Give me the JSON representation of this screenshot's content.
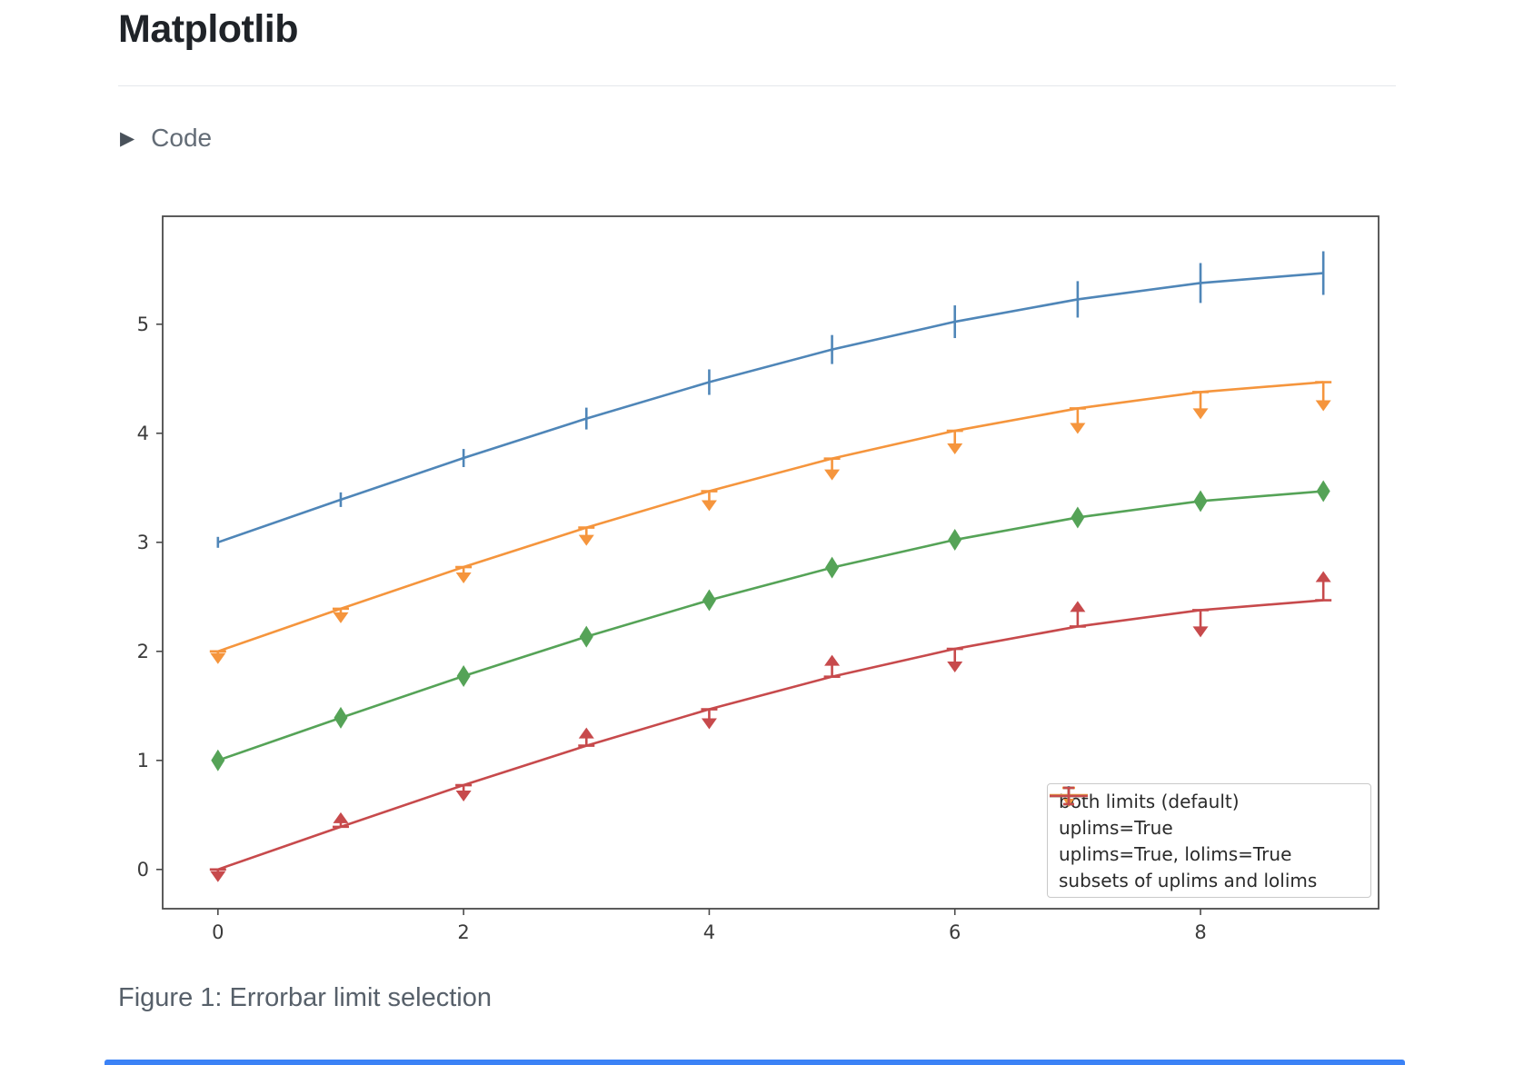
{
  "page": {
    "title": "Matplotlib",
    "code_toggle": {
      "label": "Code",
      "icon": "play-triangle"
    },
    "caption": "Figure 1: Errorbar limit selection"
  },
  "colors": {
    "title_text": "#1f2328",
    "muted_text": "#636c76",
    "caption_text": "#57606a",
    "divider": "#e4e7eb",
    "accent_bar": "#3b82f6",
    "axis": "#4a4a4a",
    "tick_label": "#3b3b3b",
    "legend_border": "#c9c9c9"
  },
  "chart_data": {
    "type": "line",
    "title": "",
    "xlabel": "",
    "ylabel": "",
    "grid": false,
    "legend_position": "lower right",
    "x": [
      0,
      1,
      2,
      3,
      4,
      5,
      6,
      7,
      8,
      9
    ],
    "xticks": [
      0,
      2,
      4,
      6,
      8
    ],
    "yticks": [
      0,
      1,
      2,
      3,
      4,
      5
    ],
    "xlim": [
      -0.45,
      9.45
    ],
    "ylim": [
      -0.36,
      5.99
    ],
    "yerr": [
      0.05,
      0.067,
      0.083,
      0.1,
      0.117,
      0.133,
      0.15,
      0.167,
      0.183,
      0.2
    ],
    "series": [
      {
        "name": "both limits (default)",
        "color": "#4f86b8",
        "limit_style": "both_bars",
        "values": [
          3.0,
          3.391,
          3.773,
          4.135,
          4.469,
          4.768,
          5.023,
          5.228,
          5.378,
          5.469
        ]
      },
      {
        "name": "uplims=True",
        "color": "#f5953d",
        "limit_style": "uplims",
        "values": [
          2.0,
          2.391,
          2.773,
          3.135,
          3.469,
          3.768,
          4.023,
          4.228,
          4.378,
          4.469
        ]
      },
      {
        "name": "uplims=True, lolims=True",
        "color": "#55a357",
        "limit_style": "uplims_lolims",
        "values": [
          1.0,
          1.391,
          1.773,
          2.135,
          2.469,
          2.768,
          3.023,
          3.228,
          3.378,
          3.469
        ]
      },
      {
        "name": "subsets of uplims and lolims",
        "color": "#c74a4c",
        "limit_style": "alternating",
        "uplims_at": [
          0,
          2,
          4,
          6,
          8
        ],
        "lolims_at": [
          1,
          3,
          5,
          7,
          9
        ],
        "values": [
          0.0,
          0.391,
          0.773,
          1.135,
          1.469,
          1.768,
          2.023,
          2.228,
          2.378,
          2.469
        ]
      }
    ]
  }
}
